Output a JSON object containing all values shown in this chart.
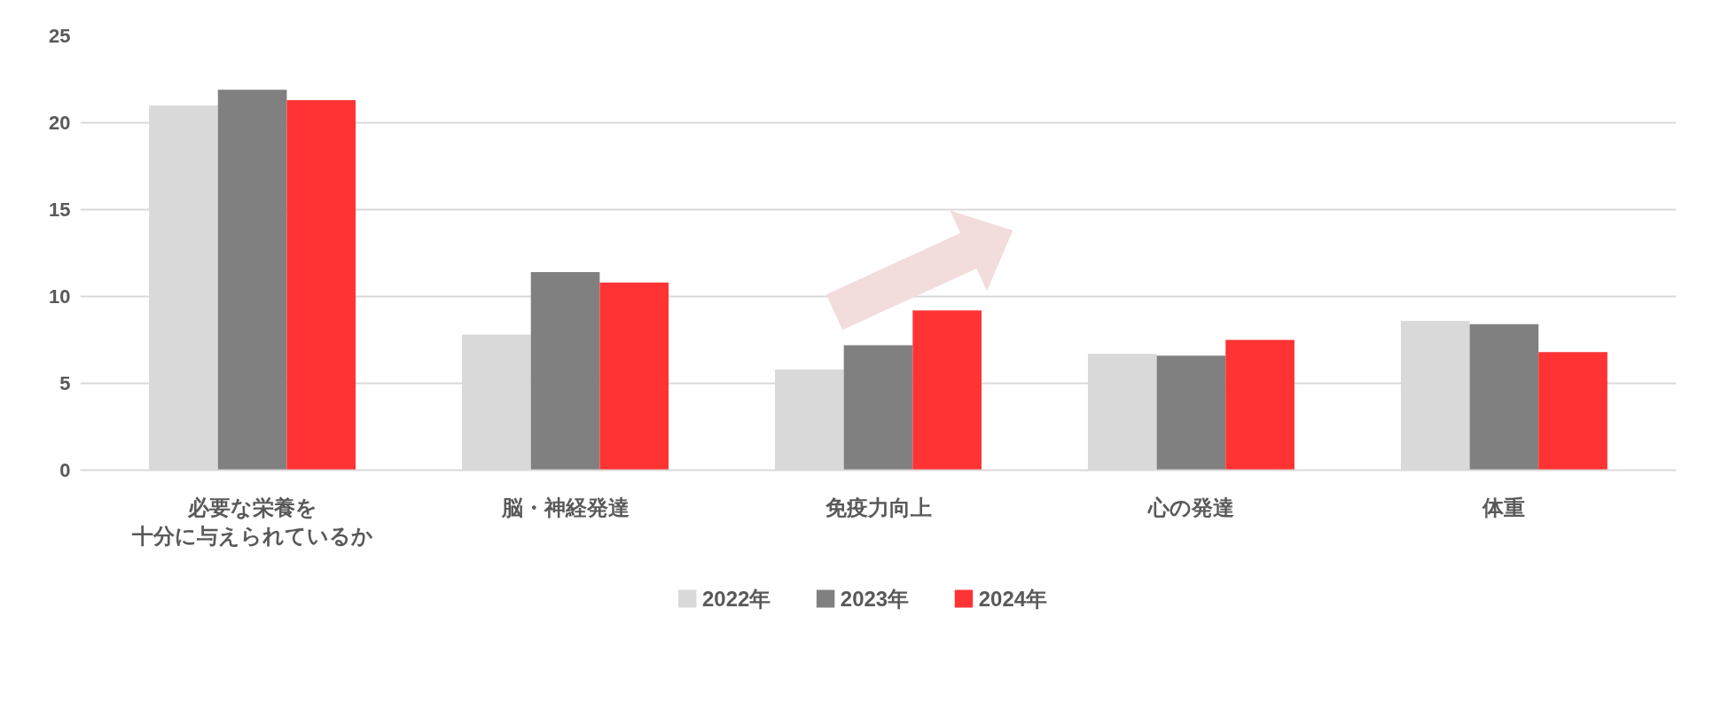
{
  "chart_data": {
    "type": "bar",
    "categories": [
      "必要な栄養を十分に与えられているか",
      "脳・神経発達",
      "免疫力向上",
      "心の発達",
      "体重"
    ],
    "series": [
      {
        "name": "2022年",
        "color": "#d9d9d9",
        "values": [
          21.0,
          7.8,
          5.8,
          6.7,
          8.6
        ]
      },
      {
        "name": "2023年",
        "color": "#808080",
        "values": [
          21.9,
          11.4,
          7.2,
          6.6,
          8.4
        ]
      },
      {
        "name": "2024年",
        "color": "#ff3333",
        "values": [
          21.3,
          10.8,
          9.2,
          7.5,
          6.8
        ]
      }
    ],
    "ylim": [
      0,
      25
    ],
    "yticks": [
      0,
      5,
      10,
      15,
      20,
      25
    ],
    "grid": "y",
    "legend": "bottom"
  }
}
